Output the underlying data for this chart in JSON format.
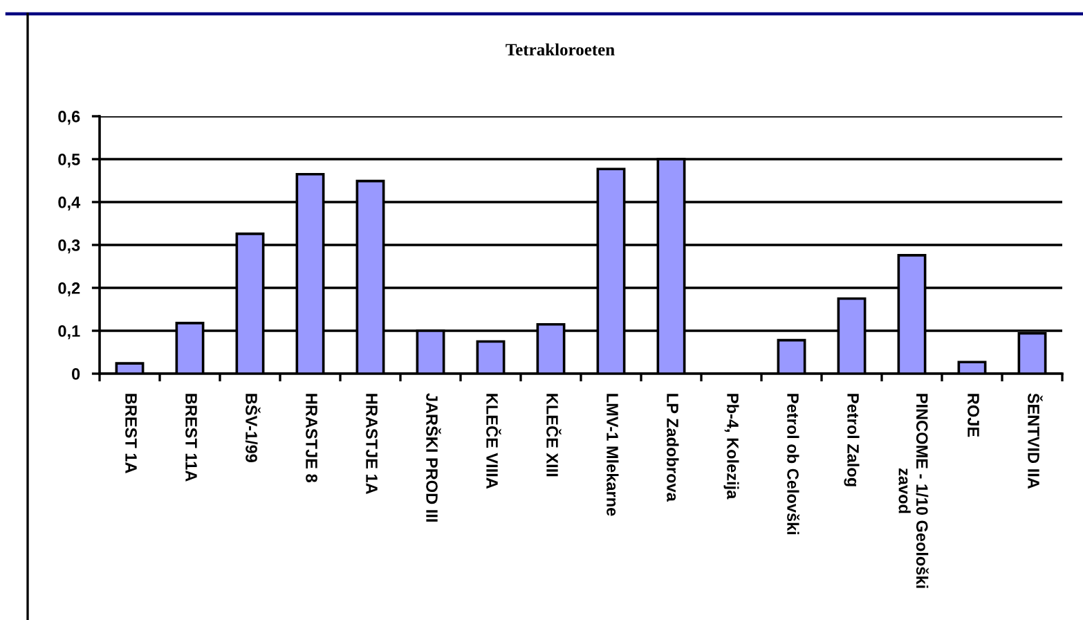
{
  "chart_data": {
    "type": "bar",
    "title": "Tetrakloroeten",
    "categories": [
      "BREST 1A",
      "BREST 11A",
      "BŠV-1/99",
      "HRASTJE 8",
      "HRASTJE 1A",
      "JARŠKI PROD III",
      "KLEČE VIIIA",
      "KLEČE XIII",
      "LMV-1 Mlekarne",
      "LP Zadobrova",
      "Pb-4, Kolezija",
      "Petrol ob Celovški",
      "Petrol Zalog",
      "PINCOME - 1/10 Geološki zavod",
      "ROJE",
      "ŠENTVID IIA"
    ],
    "values": [
      0.024,
      0.118,
      0.326,
      0.465,
      0.449,
      0.1,
      0.075,
      0.115,
      0.477,
      0.5,
      null,
      0.078,
      0.175,
      0.276,
      0.027,
      0.094
    ],
    "color": "#9999ff",
    "ylim": [
      0,
      0.6
    ],
    "yticks": [
      0,
      {
        "value": 0.1,
        "label": "0,1"
      },
      {
        "value": 0.2,
        "label": "0,2"
      },
      {
        "value": 0.3,
        "label": "0,3"
      },
      {
        "value": 0.4,
        "label": "0,4"
      },
      {
        "value": 0.5,
        "label": "0,5"
      },
      {
        "value": 0.6,
        "label": "0,6"
      }
    ],
    "grid": "y"
  }
}
